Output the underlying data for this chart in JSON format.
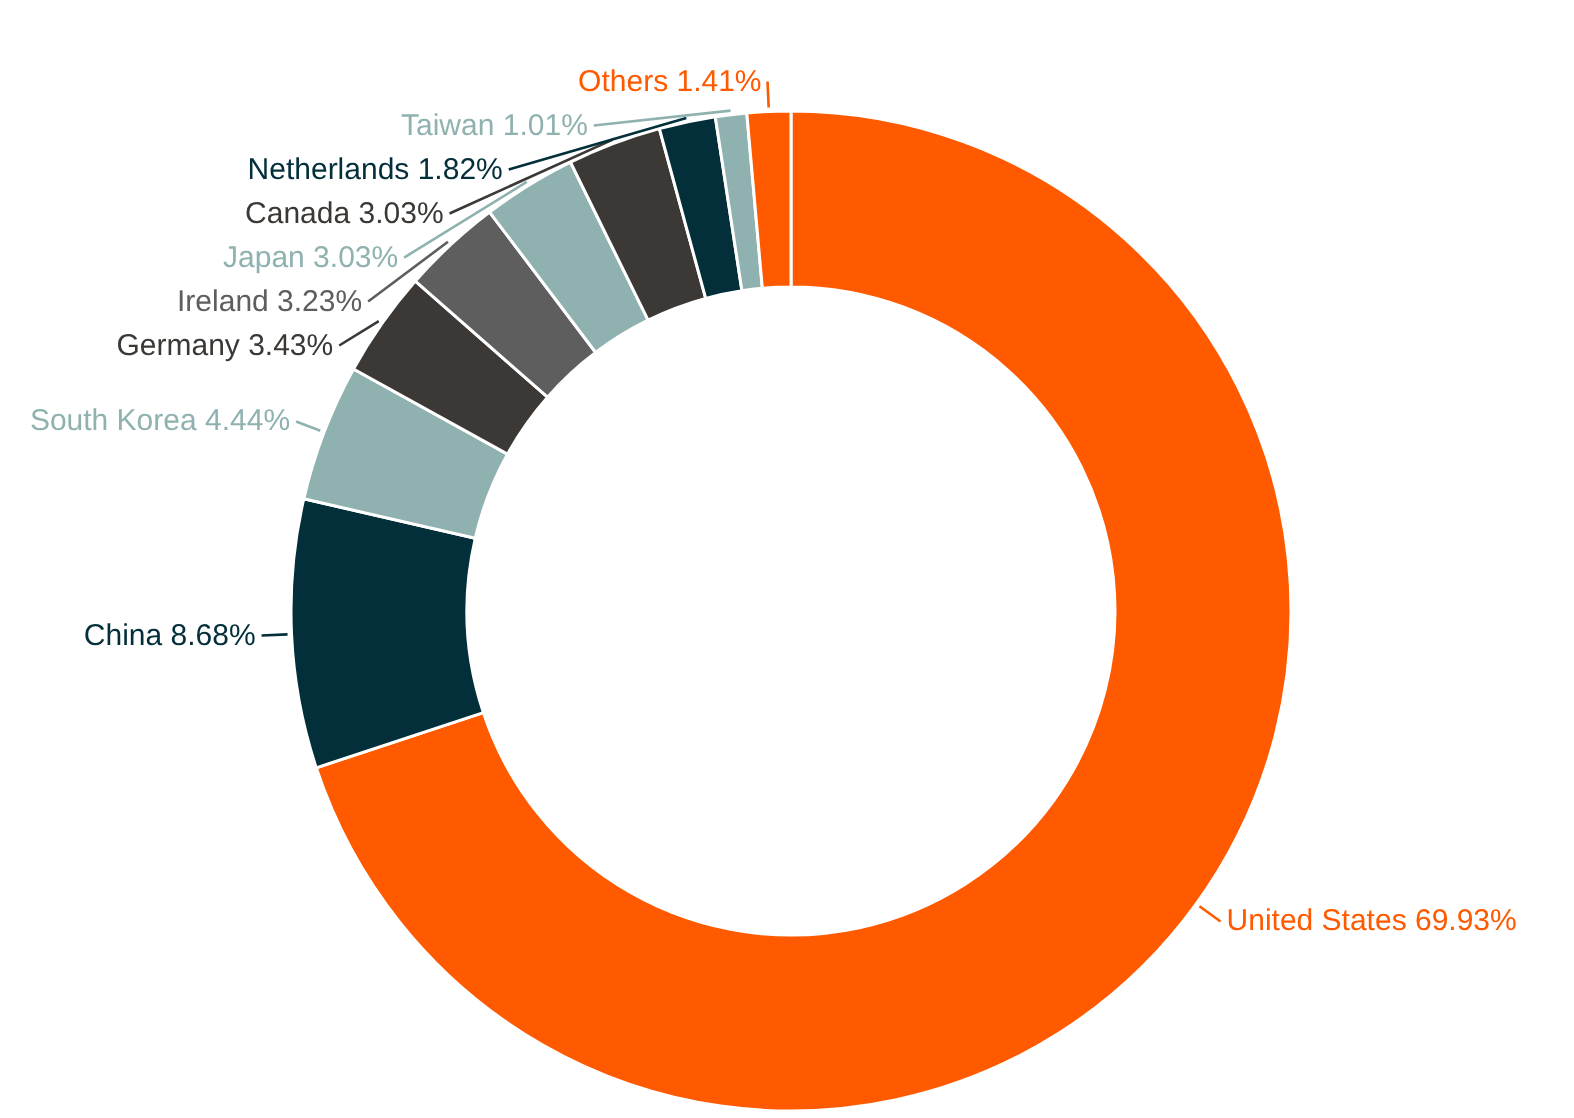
{
  "chart_data": {
    "type": "donut",
    "categories": [
      "United States",
      "China",
      "South Korea",
      "Germany",
      "Ireland",
      "Japan",
      "Canada",
      "Netherlands",
      "Taiwan",
      "Others"
    ],
    "values": [
      69.93,
      8.68,
      4.44,
      3.43,
      3.23,
      3.03,
      3.03,
      1.82,
      1.01,
      1.41
    ],
    "colors": [
      "#ff5a00",
      "#022f3a",
      "#8fb2b1",
      "#3b3835",
      "#5e5e5e",
      "#8fb2b1",
      "#3b3835",
      "#022f3a",
      "#8fb2b1",
      "#ff5a00"
    ],
    "value_labels": [
      "69.93%",
      "8.68%",
      "4.44%",
      "3.43%",
      "3.23%",
      "3.03%",
      "3.03%",
      "1.82%",
      "1.01%",
      "1.41%"
    ]
  }
}
